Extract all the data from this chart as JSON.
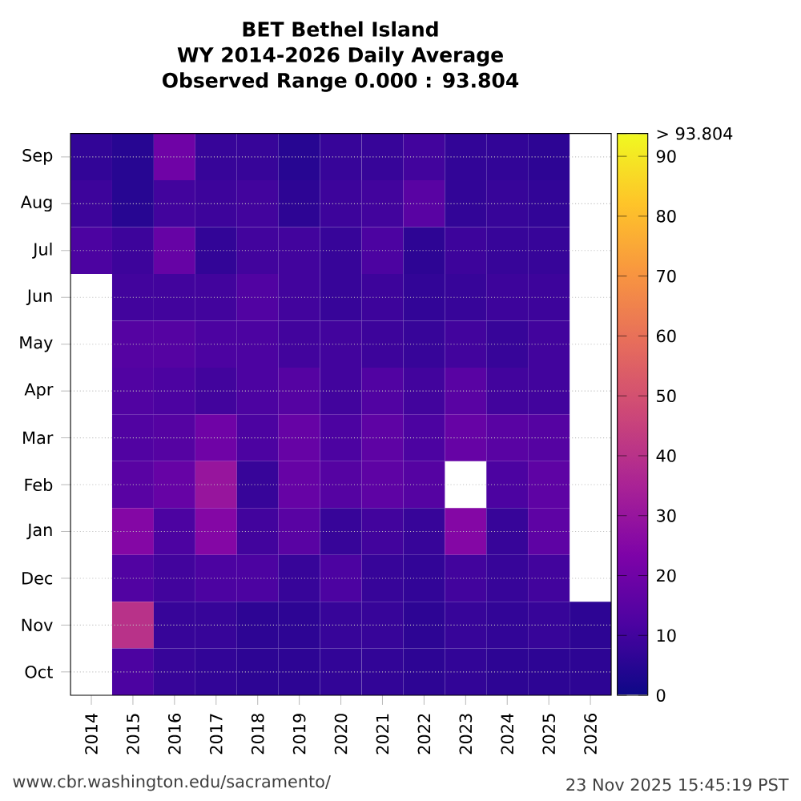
{
  "chart_data": {
    "type": "heatmap",
    "title": "BET Bethel Island",
    "subtitle": "WY 2014-2026 Daily Average",
    "annotations": [
      "Observed Range 0.000 : 93.804",
      "www.cbr.washington.edu/sacramento/",
      "23 Nov 2025 15:45:19 PST"
    ],
    "categories": [
      "2014",
      "2015",
      "2016",
      "2017",
      "2018",
      "2019",
      "2020",
      "2021",
      "2022",
      "2023",
      "2024",
      "2025",
      "2026"
    ],
    "y_categories": [
      "Sep",
      "Aug",
      "Jul",
      "Jun",
      "May",
      "Apr",
      "Mar",
      "Feb",
      "Jan",
      "Dec",
      "Nov",
      "Oct"
    ],
    "cells": [
      [
        7,
        5,
        20,
        8,
        8,
        5,
        8,
        8,
        10,
        7,
        7,
        6,
        null
      ],
      [
        9,
        5,
        10,
        9,
        10,
        6,
        9,
        10,
        15,
        7,
        8,
        7,
        null
      ],
      [
        12,
        9,
        18,
        7,
        10,
        10,
        8,
        12,
        6,
        9,
        8,
        8,
        null
      ],
      [
        null,
        10,
        10,
        10,
        13,
        10,
        8,
        9,
        7,
        8,
        9,
        9,
        null
      ],
      [
        null,
        14,
        14,
        12,
        12,
        10,
        10,
        9,
        8,
        10,
        8,
        10,
        null
      ],
      [
        null,
        13,
        12,
        10,
        12,
        14,
        10,
        13,
        10,
        15,
        10,
        10,
        null
      ],
      [
        null,
        13,
        14,
        20,
        12,
        18,
        12,
        16,
        12,
        18,
        15,
        14,
        null
      ],
      [
        null,
        15,
        18,
        30,
        8,
        18,
        14,
        16,
        14,
        null,
        12,
        16,
        null
      ],
      [
        null,
        25,
        12,
        25,
        10,
        15,
        8,
        10,
        8,
        25,
        8,
        16,
        null
      ],
      [
        null,
        13,
        10,
        12,
        12,
        8,
        12,
        8,
        7,
        10,
        8,
        10,
        null
      ],
      [
        null,
        40,
        8,
        8,
        6,
        6,
        8,
        8,
        6,
        8,
        7,
        8,
        6
      ],
      [
        null,
        12,
        8,
        7,
        6,
        6,
        7,
        7,
        6,
        7,
        6,
        6,
        6
      ]
    ],
    "clim": [
      0,
      93.804
    ],
    "cticks": [
      0,
      10,
      20,
      30,
      40,
      50,
      60,
      70,
      80,
      90,
      {
        "value": 93.804,
        "label": "> 93.804"
      }
    ],
    "grid": "y"
  }
}
